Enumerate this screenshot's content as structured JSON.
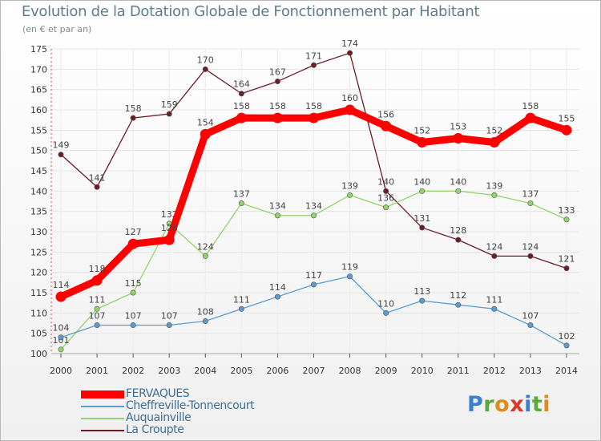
{
  "header": {
    "title": "Evolution de la Dotation Globale de Fonctionnement par Habitant",
    "subtitle": "(en € et par an)"
  },
  "logo": {
    "text": "Proxiti",
    "letters": [
      {
        "ch": "P",
        "color": "#3b7fd0"
      },
      {
        "ch": "r",
        "color": "#5aaa3a"
      },
      {
        "ch": "o",
        "color": "#e08a1a"
      },
      {
        "ch": "x",
        "color": "#d83a2a"
      },
      {
        "ch": "i",
        "color": "#3b7fd0"
      },
      {
        "ch": "t",
        "color": "#5aaa3a"
      },
      {
        "ch": "i",
        "color": "#e08a1a"
      }
    ]
  },
  "chart_data": {
    "type": "line",
    "title": "Evolution de la Dotation Globale de Fonctionnement par Habitant",
    "subtitle": "(en € et par an)",
    "xlabel": "",
    "ylabel": "",
    "ylim": [
      100,
      175
    ],
    "yticks": [
      100,
      105,
      110,
      115,
      120,
      125,
      130,
      135,
      140,
      145,
      150,
      155,
      160,
      165,
      170,
      175
    ],
    "grid": true,
    "legend_position": "bottom-left",
    "categories": [
      "2000",
      "2001",
      "2002",
      "2003",
      "2004",
      "2005",
      "2006",
      "2007",
      "2008",
      "2009",
      "2010",
      "2011",
      "2012",
      "2013",
      "2014"
    ],
    "series": [
      {
        "name": "La Croupte",
        "color": "#6b1c24",
        "values": [
          149,
          141,
          158,
          159,
          170,
          164,
          167,
          171,
          174,
          140,
          131,
          128,
          124,
          124,
          121
        ]
      },
      {
        "name": "Auquainville",
        "color": "#93d36b",
        "values": [
          101,
          111,
          115,
          132,
          124,
          137,
          134,
          134,
          139,
          136,
          140,
          140,
          139,
          137,
          133
        ]
      },
      {
        "name": "Cheffreville-Tonnencourt",
        "color": "#5b9bd1",
        "values": [
          104,
          107,
          107,
          107,
          108,
          111,
          114,
          117,
          119,
          110,
          113,
          112,
          111,
          107,
          102
        ]
      },
      {
        "name": "FERVAQUES",
        "color": "#ff0000",
        "values": [
          114,
          118,
          127,
          128,
          154,
          158,
          158,
          158,
          160,
          156,
          152,
          153,
          152,
          158,
          155
        ]
      }
    ],
    "legend": [
      "FERVAQUES",
      "Cheffreville-Tonnencourt",
      "Auquainville",
      "La Croupte"
    ]
  }
}
